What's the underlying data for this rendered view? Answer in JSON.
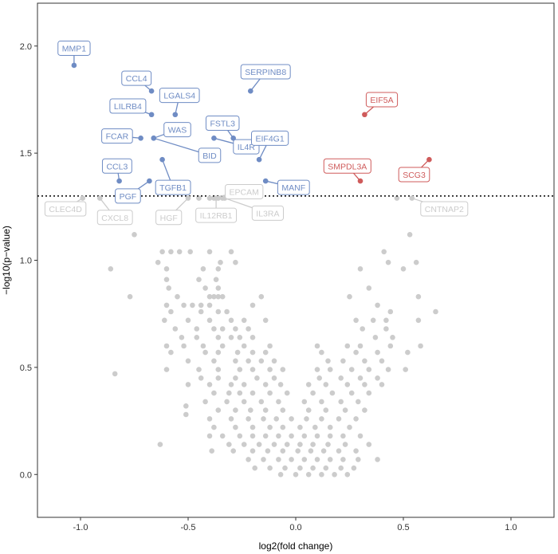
{
  "chart_data": {
    "type": "scatter",
    "xlabel": "log2(fold change)",
    "ylabel": "−log10(p−value)",
    "xlim": [
      -1.2,
      1.2
    ],
    "ylim": [
      -0.2,
      2.2
    ],
    "x_ticks": [
      "-1.0",
      "-0.5",
      "0.0",
      "0.5",
      "1.0"
    ],
    "y_ticks": [
      "0.0",
      "0.5",
      "1.0",
      "1.5",
      "2.0"
    ],
    "x_tick_values": [
      -1.0,
      -0.5,
      0.0,
      0.5,
      1.0
    ],
    "y_tick_values": [
      0.0,
      0.5,
      1.0,
      1.5,
      2.0
    ],
    "threshold": 1.3,
    "colors": {
      "down": "#6f8cc4",
      "up": "#cf5b5b",
      "ns": "#cccccc",
      "threshold": "#000000"
    },
    "labeled_points": [
      {
        "label": "MMP1",
        "x": -1.03,
        "y": 1.91,
        "lx": -1.03,
        "ly": 1.99,
        "group": "down"
      },
      {
        "label": "CCL4",
        "x": -0.67,
        "y": 1.79,
        "lx": -0.74,
        "ly": 1.85,
        "group": "down"
      },
      {
        "label": "LGALS4",
        "x": -0.56,
        "y": 1.68,
        "lx": -0.54,
        "ly": 1.77,
        "group": "down"
      },
      {
        "label": "SERPINB8",
        "x": -0.21,
        "y": 1.79,
        "lx": -0.14,
        "ly": 1.88,
        "group": "down"
      },
      {
        "label": "LILRB4",
        "x": -0.67,
        "y": 1.68,
        "lx": -0.78,
        "ly": 1.72,
        "group": "down"
      },
      {
        "label": "FCAR",
        "x": -0.72,
        "y": 1.57,
        "lx": -0.83,
        "ly": 1.58,
        "group": "down"
      },
      {
        "label": "WAS",
        "x": -0.66,
        "y": 1.57,
        "lx": -0.55,
        "ly": 1.61,
        "group": "down"
      },
      {
        "label": "FSTL3",
        "x": -0.29,
        "y": 1.57,
        "lx": -0.34,
        "ly": 1.64,
        "group": "down"
      },
      {
        "label": "IL4R",
        "x": -0.38,
        "y": 1.57,
        "lx": -0.23,
        "ly": 1.53,
        "group": "down"
      },
      {
        "label": "EIF4G1",
        "x": -0.17,
        "y": 1.47,
        "lx": -0.12,
        "ly": 1.57,
        "group": "down"
      },
      {
        "label": "BID",
        "x": -0.66,
        "y": 1.57,
        "lx": -0.4,
        "ly": 1.49,
        "group": "down"
      },
      {
        "label": "CCL3",
        "x": -0.82,
        "y": 1.37,
        "lx": -0.83,
        "ly": 1.44,
        "group": "down"
      },
      {
        "label": "TGFB1",
        "x": -0.62,
        "y": 1.47,
        "lx": -0.57,
        "ly": 1.34,
        "group": "down"
      },
      {
        "label": "PGF",
        "x": -0.68,
        "y": 1.37,
        "lx": -0.78,
        "ly": 1.3,
        "group": "down"
      },
      {
        "label": "MANF",
        "x": -0.14,
        "y": 1.37,
        "lx": -0.01,
        "ly": 1.34,
        "group": "down"
      },
      {
        "label": "EIF5A",
        "x": 0.32,
        "y": 1.68,
        "lx": 0.4,
        "ly": 1.75,
        "group": "up"
      },
      {
        "label": "SMPDL3A",
        "x": 0.3,
        "y": 1.37,
        "lx": 0.24,
        "ly": 1.44,
        "group": "up"
      },
      {
        "label": "SCG3",
        "x": 0.62,
        "y": 1.47,
        "lx": 0.55,
        "ly": 1.4,
        "group": "up"
      },
      {
        "label": "CLEC4D",
        "x": -0.99,
        "y": 1.29,
        "lx": -1.07,
        "ly": 1.24,
        "group": "ns"
      },
      {
        "label": "CXCL8",
        "x": -0.91,
        "y": 1.29,
        "lx": -0.84,
        "ly": 1.2,
        "group": "ns"
      },
      {
        "label": "HGF",
        "x": -0.5,
        "y": 1.29,
        "lx": -0.59,
        "ly": 1.2,
        "group": "ns"
      },
      {
        "label": "EPCAM",
        "x": -0.4,
        "y": 1.29,
        "lx": -0.24,
        "ly": 1.32,
        "group": "ns"
      },
      {
        "label": "IL12RB1",
        "x": -0.37,
        "y": 1.29,
        "lx": -0.37,
        "ly": 1.21,
        "group": "ns"
      },
      {
        "label": "IL3RA",
        "x": -0.33,
        "y": 1.29,
        "lx": -0.13,
        "ly": 1.22,
        "group": "ns"
      },
      {
        "label": "CNTNAP2",
        "x": 0.54,
        "y": 1.29,
        "lx": 0.69,
        "ly": 1.24,
        "group": "ns"
      }
    ],
    "points": [
      [
        -0.45,
        1.29
      ],
      [
        -0.38,
        1.29
      ],
      [
        -0.36,
        1.29
      ],
      [
        -0.34,
        1.29
      ],
      [
        0.47,
        1.29
      ],
      [
        0.53,
        1.12
      ],
      [
        -0.75,
        1.12
      ],
      [
        -0.62,
        1.04
      ],
      [
        -0.58,
        1.04
      ],
      [
        -0.54,
        1.04
      ],
      [
        -0.49,
        1.04
      ],
      [
        -0.4,
        1.04
      ],
      [
        -0.3,
        1.04
      ],
      [
        0.41,
        1.04
      ],
      [
        -0.64,
        0.99
      ],
      [
        -0.35,
        0.99
      ],
      [
        -0.28,
        0.99
      ],
      [
        0.43,
        0.99
      ],
      [
        0.56,
        0.99
      ],
      [
        -0.86,
        0.96
      ],
      [
        -0.6,
        0.96
      ],
      [
        -0.43,
        0.96
      ],
      [
        -0.36,
        0.96
      ],
      [
        0.3,
        0.96
      ],
      [
        0.5,
        0.96
      ],
      [
        -0.6,
        0.91
      ],
      [
        -0.45,
        0.91
      ],
      [
        -0.37,
        0.91
      ],
      [
        -0.59,
        0.87
      ],
      [
        -0.42,
        0.87
      ],
      [
        -0.36,
        0.87
      ],
      [
        0.34,
        0.87
      ],
      [
        -0.55,
        0.83
      ],
      [
        -0.4,
        0.83
      ],
      [
        -0.38,
        0.83
      ],
      [
        -0.36,
        0.83
      ],
      [
        -0.34,
        0.83
      ],
      [
        -0.16,
        0.83
      ],
      [
        -0.77,
        0.83
      ],
      [
        0.25,
        0.83
      ],
      [
        0.57,
        0.83
      ],
      [
        -0.6,
        0.79
      ],
      [
        -0.52,
        0.79
      ],
      [
        -0.48,
        0.79
      ],
      [
        -0.44,
        0.79
      ],
      [
        -0.4,
        0.79
      ],
      [
        -0.2,
        0.79
      ],
      [
        0.38,
        0.79
      ],
      [
        -0.58,
        0.76
      ],
      [
        -0.44,
        0.76
      ],
      [
        -0.36,
        0.76
      ],
      [
        -0.32,
        0.76
      ],
      [
        0.44,
        0.76
      ],
      [
        0.65,
        0.76
      ],
      [
        -0.61,
        0.72
      ],
      [
        -0.5,
        0.72
      ],
      [
        -0.4,
        0.72
      ],
      [
        -0.3,
        0.72
      ],
      [
        -0.24,
        0.72
      ],
      [
        -0.14,
        0.72
      ],
      [
        0.28,
        0.72
      ],
      [
        0.36,
        0.72
      ],
      [
        0.42,
        0.72
      ],
      [
        0.57,
        0.72
      ],
      [
        -0.56,
        0.68
      ],
      [
        -0.46,
        0.68
      ],
      [
        -0.38,
        0.68
      ],
      [
        -0.34,
        0.68
      ],
      [
        -0.28,
        0.68
      ],
      [
        -0.22,
        0.68
      ],
      [
        0.31,
        0.68
      ],
      [
        0.42,
        0.68
      ],
      [
        -0.53,
        0.64
      ],
      [
        -0.46,
        0.64
      ],
      [
        -0.36,
        0.64
      ],
      [
        -0.3,
        0.64
      ],
      [
        -0.26,
        0.64
      ],
      [
        -0.2,
        0.64
      ],
      [
        0.37,
        0.64
      ],
      [
        0.45,
        0.64
      ],
      [
        -0.6,
        0.6
      ],
      [
        -0.52,
        0.6
      ],
      [
        -0.43,
        0.6
      ],
      [
        -0.34,
        0.6
      ],
      [
        -0.24,
        0.6
      ],
      [
        -0.12,
        0.6
      ],
      [
        0.1,
        0.6
      ],
      [
        0.24,
        0.6
      ],
      [
        0.3,
        0.6
      ],
      [
        0.44,
        0.6
      ],
      [
        0.58,
        0.6
      ],
      [
        -0.58,
        0.57
      ],
      [
        -0.42,
        0.57
      ],
      [
        -0.36,
        0.57
      ],
      [
        -0.27,
        0.57
      ],
      [
        -0.2,
        0.57
      ],
      [
        -0.14,
        0.57
      ],
      [
        0.12,
        0.57
      ],
      [
        0.28,
        0.57
      ],
      [
        0.38,
        0.57
      ],
      [
        0.52,
        0.57
      ],
      [
        -0.5,
        0.53
      ],
      [
        -0.38,
        0.53
      ],
      [
        -0.28,
        0.53
      ],
      [
        -0.22,
        0.53
      ],
      [
        -0.16,
        0.53
      ],
      [
        -0.1,
        0.53
      ],
      [
        0.15,
        0.53
      ],
      [
        0.22,
        0.53
      ],
      [
        0.32,
        0.53
      ],
      [
        0.4,
        0.53
      ],
      [
        -0.6,
        0.49
      ],
      [
        -0.45,
        0.49
      ],
      [
        -0.36,
        0.49
      ],
      [
        -0.26,
        0.49
      ],
      [
        -0.2,
        0.49
      ],
      [
        -0.12,
        0.49
      ],
      [
        -0.06,
        0.49
      ],
      [
        0.1,
        0.49
      ],
      [
        0.16,
        0.49
      ],
      [
        0.26,
        0.49
      ],
      [
        0.34,
        0.49
      ],
      [
        0.43,
        0.49
      ],
      [
        0.51,
        0.49
      ],
      [
        -0.84,
        0.47
      ],
      [
        -0.44,
        0.45
      ],
      [
        -0.36,
        0.45
      ],
      [
        -0.28,
        0.45
      ],
      [
        -0.18,
        0.45
      ],
      [
        -0.1,
        0.45
      ],
      [
        0.11,
        0.45
      ],
      [
        0.21,
        0.45
      ],
      [
        0.3,
        0.45
      ],
      [
        0.38,
        0.45
      ],
      [
        -0.5,
        0.42
      ],
      [
        -0.4,
        0.42
      ],
      [
        -0.3,
        0.42
      ],
      [
        -0.24,
        0.42
      ],
      [
        -0.14,
        0.42
      ],
      [
        -0.07,
        0.42
      ],
      [
        0.06,
        0.42
      ],
      [
        0.14,
        0.42
      ],
      [
        0.24,
        0.42
      ],
      [
        0.32,
        0.42
      ],
      [
        0.4,
        0.42
      ],
      [
        -0.38,
        0.38
      ],
      [
        -0.31,
        0.38
      ],
      [
        -0.26,
        0.38
      ],
      [
        -0.2,
        0.38
      ],
      [
        -0.12,
        0.38
      ],
      [
        -0.04,
        0.38
      ],
      [
        0.08,
        0.38
      ],
      [
        0.17,
        0.38
      ],
      [
        0.26,
        0.38
      ],
      [
        0.34,
        0.38
      ],
      [
        -0.42,
        0.34
      ],
      [
        -0.32,
        0.34
      ],
      [
        -0.24,
        0.34
      ],
      [
        -0.16,
        0.34
      ],
      [
        -0.08,
        0.34
      ],
      [
        0.04,
        0.34
      ],
      [
        0.12,
        0.34
      ],
      [
        0.21,
        0.34
      ],
      [
        0.29,
        0.34
      ],
      [
        -0.51,
        0.32
      ],
      [
        -0.36,
        0.3
      ],
      [
        -0.28,
        0.3
      ],
      [
        -0.21,
        0.3
      ],
      [
        -0.14,
        0.3
      ],
      [
        -0.06,
        0.3
      ],
      [
        0.06,
        0.3
      ],
      [
        0.14,
        0.3
      ],
      [
        0.23,
        0.3
      ],
      [
        0.32,
        0.3
      ],
      [
        -0.51,
        0.28
      ],
      [
        -0.4,
        0.26
      ],
      [
        -0.3,
        0.26
      ],
      [
        -0.22,
        0.26
      ],
      [
        -0.15,
        0.26
      ],
      [
        -0.09,
        0.26
      ],
      [
        -0.02,
        0.26
      ],
      [
        0.05,
        0.26
      ],
      [
        0.12,
        0.26
      ],
      [
        0.2,
        0.26
      ],
      [
        0.28,
        0.26
      ],
      [
        -0.38,
        0.22
      ],
      [
        -0.28,
        0.22
      ],
      [
        -0.2,
        0.22
      ],
      [
        -0.12,
        0.22
      ],
      [
        -0.06,
        0.22
      ],
      [
        0.02,
        0.22
      ],
      [
        0.09,
        0.22
      ],
      [
        0.16,
        0.22
      ],
      [
        0.25,
        0.22
      ],
      [
        -0.4,
        0.18
      ],
      [
        -0.34,
        0.18
      ],
      [
        -0.26,
        0.18
      ],
      [
        -0.2,
        0.18
      ],
      [
        -0.14,
        0.18
      ],
      [
        -0.08,
        0.18
      ],
      [
        -0.02,
        0.18
      ],
      [
        0.04,
        0.18
      ],
      [
        0.1,
        0.18
      ],
      [
        0.16,
        0.18
      ],
      [
        0.22,
        0.18
      ],
      [
        0.3,
        0.18
      ],
      [
        -0.63,
        0.14
      ],
      [
        -0.31,
        0.14
      ],
      [
        -0.24,
        0.14
      ],
      [
        -0.17,
        0.14
      ],
      [
        -0.1,
        0.14
      ],
      [
        -0.04,
        0.14
      ],
      [
        0.02,
        0.14
      ],
      [
        0.08,
        0.14
      ],
      [
        0.15,
        0.14
      ],
      [
        0.23,
        0.14
      ],
      [
        0.34,
        0.14
      ],
      [
        -0.39,
        0.11
      ],
      [
        -0.29,
        0.11
      ],
      [
        -0.2,
        0.11
      ],
      [
        -0.13,
        0.11
      ],
      [
        -0.06,
        0.11
      ],
      [
        0.01,
        0.11
      ],
      [
        0.07,
        0.11
      ],
      [
        0.13,
        0.11
      ],
      [
        0.2,
        0.11
      ],
      [
        0.28,
        0.11
      ],
      [
        -0.22,
        0.07
      ],
      [
        -0.15,
        0.07
      ],
      [
        -0.08,
        0.07
      ],
      [
        -0.02,
        0.07
      ],
      [
        0.04,
        0.07
      ],
      [
        0.1,
        0.07
      ],
      [
        0.16,
        0.07
      ],
      [
        0.22,
        0.07
      ],
      [
        0.29,
        0.07
      ],
      [
        0.38,
        0.07
      ],
      [
        -0.19,
        0.03
      ],
      [
        -0.12,
        0.03
      ],
      [
        -0.05,
        0.03
      ],
      [
        0.02,
        0.03
      ],
      [
        0.08,
        0.03
      ],
      [
        0.14,
        0.03
      ],
      [
        0.21,
        0.03
      ],
      [
        0.27,
        0.03
      ],
      [
        -0.07,
        0.0
      ],
      [
        0.0,
        0.0
      ],
      [
        0.06,
        0.0
      ],
      [
        0.12,
        0.0
      ],
      [
        0.18,
        0.0
      ],
      [
        0.24,
        0.0
      ]
    ]
  }
}
